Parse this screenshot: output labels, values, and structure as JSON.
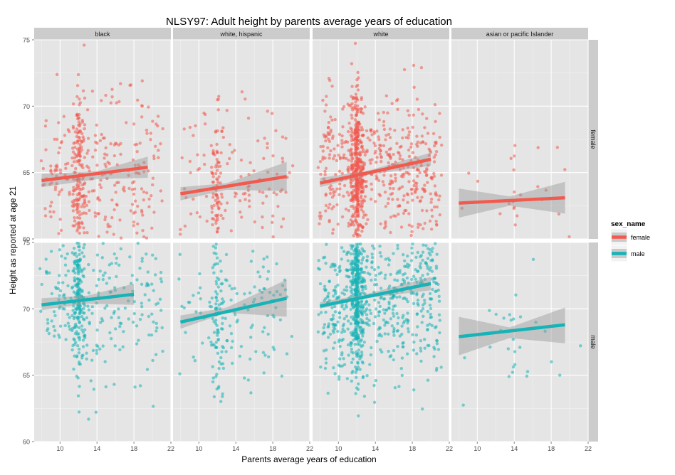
{
  "chart_data": {
    "type": "scatter",
    "title": "NLSY97: Adult height by parents average years of education",
    "xlabel": "Parents average years of education",
    "ylabel": "Height as reported at age 21",
    "facet_cols": [
      "black",
      "white, hispanic",
      "white",
      "asian or pacific Islander"
    ],
    "facet_rows": [
      "female",
      "male"
    ],
    "xlim": [
      7.2,
      22
    ],
    "x_ticks": [
      10,
      14,
      18,
      22
    ],
    "ylim": [
      60,
      75
    ],
    "y_ticks": [
      60,
      65,
      70,
      75
    ],
    "legend": {
      "title": "sex_name",
      "placement": "right",
      "entries": [
        {
          "name": "female",
          "color": "#F15A4F"
        },
        {
          "name": "male",
          "color": "#17B3B6"
        }
      ]
    },
    "panel_bg": "#E5E5E5",
    "grid": true,
    "fit_lines": [
      {
        "row": "female",
        "col": "black",
        "x": [
          8,
          19.5
        ],
        "y": [
          64.4,
          65.4
        ],
        "ci_low": [
          [
            8,
            63.9
          ],
          [
            14,
            64.5
          ],
          [
            19.5,
            64.6
          ]
        ],
        "ci_high": [
          [
            8,
            64.9
          ],
          [
            14,
            65.1
          ],
          [
            19.5,
            66.2
          ]
        ]
      },
      {
        "row": "female",
        "col": "white, hispanic",
        "x": [
          8,
          19.5
        ],
        "y": [
          63.4,
          64.7
        ],
        "ci_low": [
          [
            8,
            62.9
          ],
          [
            13,
            63.7
          ],
          [
            19.5,
            63.6
          ]
        ],
        "ci_high": [
          [
            8,
            63.9
          ],
          [
            13,
            64.2
          ],
          [
            19.5,
            65.8
          ]
        ]
      },
      {
        "row": "female",
        "col": "white",
        "x": [
          8,
          20
        ],
        "y": [
          64.2,
          66.0
        ],
        "ci_low": [
          [
            8,
            63.9
          ],
          [
            13,
            64.8
          ],
          [
            20,
            65.5
          ]
        ],
        "ci_high": [
          [
            8,
            64.6
          ],
          [
            13,
            65.1
          ],
          [
            20,
            66.5
          ]
        ]
      },
      {
        "row": "female",
        "col": "asian or pacific Islander",
        "x": [
          8,
          19.5
        ],
        "y": [
          62.7,
          63.1
        ],
        "ci_low": [
          [
            8,
            61.6
          ],
          [
            13.5,
            62.5
          ],
          [
            19.5,
            61.9
          ]
        ],
        "ci_high": [
          [
            8,
            63.8
          ],
          [
            13.5,
            63.2
          ],
          [
            19.5,
            64.3
          ]
        ]
      },
      {
        "row": "male",
        "col": "black",
        "x": [
          8,
          18
        ],
        "y": [
          70.3,
          71.1
        ],
        "ci_low": [
          [
            8,
            69.9
          ],
          [
            13,
            70.4
          ],
          [
            18,
            70.3
          ]
        ],
        "ci_high": [
          [
            8,
            70.8
          ],
          [
            13,
            71.0
          ],
          [
            18,
            71.9
          ]
        ]
      },
      {
        "row": "male",
        "col": "white, hispanic",
        "x": [
          8,
          19.5
        ],
        "y": [
          69.0,
          70.8
        ],
        "ci_low": [
          [
            8,
            68.5
          ],
          [
            13,
            69.7
          ],
          [
            19.5,
            69.4
          ]
        ],
        "ci_high": [
          [
            8,
            69.5
          ],
          [
            13,
            70.1
          ],
          [
            19.5,
            72.2
          ]
        ]
      },
      {
        "row": "male",
        "col": "white",
        "x": [
          8,
          20
        ],
        "y": [
          70.2,
          71.9
        ],
        "ci_low": [
          [
            8,
            70.0
          ],
          [
            13,
            70.8
          ],
          [
            20,
            71.4
          ]
        ],
        "ci_high": [
          [
            8,
            70.5
          ],
          [
            13,
            71.1
          ],
          [
            20,
            72.4
          ]
        ]
      },
      {
        "row": "male",
        "col": "asian or pacific Islander",
        "x": [
          8,
          19.5
        ],
        "y": [
          67.9,
          68.8
        ],
        "ci_low": [
          [
            8,
            66.5
          ],
          [
            13.5,
            67.8
          ],
          [
            19.5,
            67.4
          ]
        ],
        "ci_high": [
          [
            8,
            69.4
          ],
          [
            13.5,
            68.6
          ],
          [
            19.5,
            70.1
          ]
        ]
      }
    ],
    "point_clouds": [
      {
        "row": "female",
        "col": "black",
        "n": 420,
        "x_peak": 12,
        "x_range": [
          8,
          21
        ],
        "y_mean": 65.0,
        "y_sd": 3.0
      },
      {
        "row": "female",
        "col": "white, hispanic",
        "n": 200,
        "x_peak": 12,
        "x_range": [
          8,
          20
        ],
        "y_mean": 64.0,
        "y_sd": 2.9
      },
      {
        "row": "female",
        "col": "white",
        "n": 900,
        "x_peak": 12,
        "x_range": [
          8,
          21
        ],
        "y_mean": 65.2,
        "y_sd": 2.8
      },
      {
        "row": "female",
        "col": "asian or pacific Islander",
        "n": 24,
        "x_peak": 14,
        "x_range": [
          8,
          21
        ],
        "y_mean": 63.0,
        "y_sd": 2.2
      },
      {
        "row": "male",
        "col": "black",
        "n": 420,
        "x_peak": 12,
        "x_range": [
          8,
          21
        ],
        "y_mean": 70.6,
        "y_sd": 3.0
      },
      {
        "row": "male",
        "col": "white, hispanic",
        "n": 200,
        "x_peak": 12,
        "x_range": [
          8,
          20
        ],
        "y_mean": 69.6,
        "y_sd": 3.0
      },
      {
        "row": "male",
        "col": "white",
        "n": 950,
        "x_peak": 12,
        "x_range": [
          8,
          21
        ],
        "y_mean": 70.9,
        "y_sd": 2.9
      },
      {
        "row": "male",
        "col": "asian or pacific Islander",
        "n": 28,
        "x_peak": 14,
        "x_range": [
          8,
          21
        ],
        "y_mean": 68.5,
        "y_sd": 2.8
      }
    ]
  }
}
